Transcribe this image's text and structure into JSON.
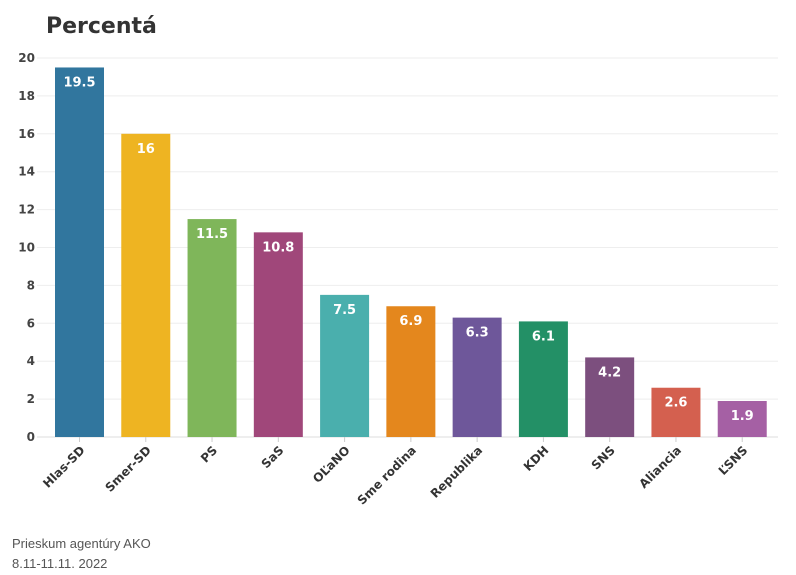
{
  "chart_data": {
    "type": "bar",
    "title": "Percentá",
    "categories": [
      "Hlas-SD",
      "Smer-SD",
      "PS",
      "SaS",
      "OĽaNO",
      "Sme rodina",
      "Republika",
      "KDH",
      "SNS",
      "Aliancia",
      "ĽSNS"
    ],
    "values": [
      19.5,
      16,
      11.5,
      10.8,
      7.5,
      6.9,
      6.3,
      6.1,
      4.2,
      2.6,
      1.9
    ],
    "colors": [
      "#31769e",
      "#eeb422",
      "#7fb65a",
      "#a0477a",
      "#4aafad",
      "#e4871d",
      "#6e579a",
      "#239066",
      "#7c4f7e",
      "#d4604f",
      "#a560a4"
    ],
    "ylim": [
      0,
      20
    ],
    "yticks": [
      0,
      2,
      4,
      6,
      8,
      10,
      12,
      14,
      16,
      18,
      20
    ],
    "grid": true,
    "data_labels": true
  },
  "note": {
    "line1": "Prieskum agentúry AKO",
    "line2": "8.11-11.11. 2022"
  }
}
